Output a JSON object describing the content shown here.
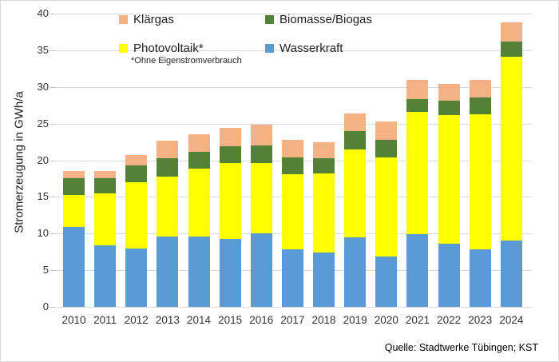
{
  "y_axis": {
    "title": "Stromerzeugung in GWh/a",
    "ticks": [
      0,
      5,
      10,
      15,
      20,
      25,
      30,
      35,
      40
    ]
  },
  "legend": {
    "items": [
      {
        "label": "Klärgas",
        "color": "#F4B183",
        "icon": "klaergas-swatch"
      },
      {
        "label": "Biomasse/Biogas",
        "color": "#538135",
        "icon": "biomasse-swatch"
      },
      {
        "label": "Photovoltaik*",
        "color": "#FFFF00",
        "icon": "photovoltaik-swatch"
      },
      {
        "label": "Wasserkraft",
        "color": "#5B9BD5",
        "icon": "wasserkraft-swatch"
      }
    ],
    "footnote": "*Ohne Eigenstromverbrauch"
  },
  "source": "Quelle: Stadtwerke Tübingen; KST",
  "chart_data": {
    "type": "bar",
    "stacked": true,
    "title": "",
    "xlabel": "",
    "ylabel": "Stromerzeugung in GWh/a",
    "ylim": [
      0,
      40
    ],
    "y_step": 5,
    "grid": true,
    "legend_position": "top-inside",
    "categories": [
      "2010",
      "2011",
      "2012",
      "2013",
      "2014",
      "2015",
      "2016",
      "2017",
      "2018",
      "2019",
      "2020",
      "2021",
      "2022",
      "2023",
      "2024"
    ],
    "series": [
      {
        "name": "Wasserkraft",
        "color": "#5B9BD5",
        "values": [
          10.9,
          8.4,
          8.0,
          9.6,
          9.6,
          9.3,
          10.0,
          7.8,
          7.4,
          9.5,
          6.9,
          9.9,
          8.6,
          7.9,
          9.1
        ]
      },
      {
        "name": "Photovoltaik*",
        "color": "#FFFF00",
        "values": [
          4.4,
          7.1,
          9.0,
          8.2,
          9.3,
          10.3,
          9.6,
          10.3,
          10.8,
          12.0,
          13.5,
          16.7,
          17.6,
          18.4,
          25.0
        ]
      },
      {
        "name": "Biomasse/Biogas",
        "color": "#538135",
        "values": [
          2.3,
          2.1,
          2.3,
          2.5,
          2.2,
          2.3,
          2.4,
          2.3,
          2.1,
          2.5,
          2.4,
          1.7,
          1.9,
          2.3,
          2.1
        ]
      },
      {
        "name": "Klärgas",
        "color": "#F4B183",
        "values": [
          0.9,
          0.9,
          1.4,
          2.4,
          2.4,
          2.5,
          2.8,
          2.4,
          2.2,
          2.4,
          2.5,
          2.6,
          2.3,
          2.4,
          2.6
        ]
      }
    ],
    "totals": [
      18.5,
      18.5,
      20.7,
      22.7,
      23.5,
      24.4,
      24.8,
      22.8,
      22.5,
      26.4,
      25.3,
      30.9,
      30.4,
      31.0,
      38.8
    ]
  }
}
